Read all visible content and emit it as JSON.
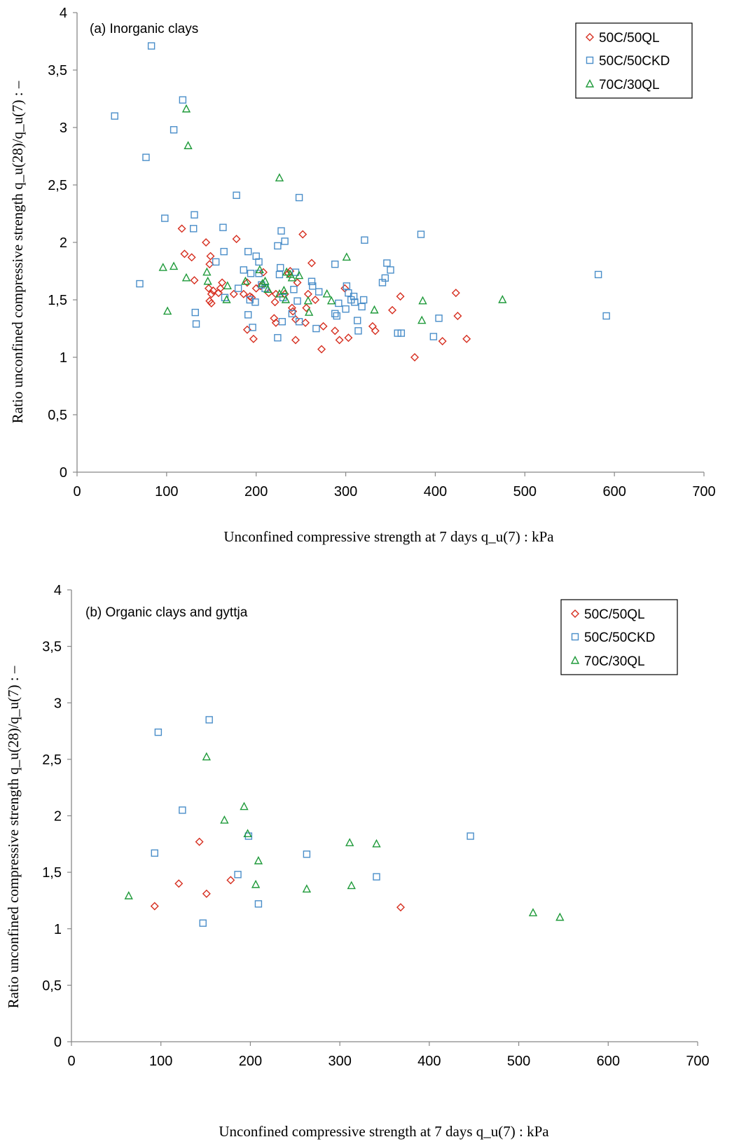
{
  "colors": {
    "50C/50QL": "#d62e1f",
    "50C/50CKD": "#4a8ec9",
    "70C/30QL": "#1f9a3a"
  },
  "markers": {
    "50C/50QL": "diamond",
    "50C/50CKD": "square",
    "70C/30QL": "triangle"
  },
  "chart_data": [
    {
      "type": "scatter",
      "title": "(a) Inorganic clays",
      "xlabel": "Unconfined compressive strength at 7 days q_u(7) : kPa",
      "ylabel": "Ratio unconfined compressive strength q_u(28)/q_u(7) : –",
      "xlim": [
        0,
        700
      ],
      "ylim": [
        0,
        4
      ],
      "xticks": [
        "0",
        "100",
        "200",
        "300",
        "400",
        "500",
        "600",
        "700"
      ],
      "yticks": [
        "0",
        "0,5",
        "1",
        "1,5",
        "2",
        "2,5",
        "3",
        "3,5",
        "4"
      ],
      "grid": false,
      "legend_position": "top-right",
      "series": [
        {
          "name": "50C/50QL",
          "points": [
            [
              117,
              2.12
            ],
            [
              120,
              1.9
            ],
            [
              128,
              1.87
            ],
            [
              131,
              1.67
            ],
            [
              144,
              2.0
            ],
            [
              148,
              1.81
            ],
            [
              149,
              1.88
            ],
            [
              147,
              1.6
            ],
            [
              150,
              1.55
            ],
            [
              152,
              1.58
            ],
            [
              148,
              1.49
            ],
            [
              150,
              1.47
            ],
            [
              158,
              1.56
            ],
            [
              160,
              1.6
            ],
            [
              162,
              1.65
            ],
            [
              175,
              1.55
            ],
            [
              178,
              2.03
            ],
            [
              186,
              1.55
            ],
            [
              190,
              1.65
            ],
            [
              193,
              1.53
            ],
            [
              195,
              1.52
            ],
            [
              190,
              1.24
            ],
            [
              197,
              1.16
            ],
            [
              200,
              1.6
            ],
            [
              205,
              1.62
            ],
            [
              208,
              1.74
            ],
            [
              214,
              1.56
            ],
            [
              222,
              1.55
            ],
            [
              220,
              1.34
            ],
            [
              222,
              1.3
            ],
            [
              221,
              1.48
            ],
            [
              232,
              1.55
            ],
            [
              236,
              1.73
            ],
            [
              238,
              1.75
            ],
            [
              240,
              1.43
            ],
            [
              241,
              1.4
            ],
            [
              244,
              1.33
            ],
            [
              246,
              1.65
            ],
            [
              244,
              1.15
            ],
            [
              252,
              2.07
            ],
            [
              256,
              1.43
            ],
            [
              255,
              1.3
            ],
            [
              258,
              1.55
            ],
            [
              262,
              1.82
            ],
            [
              266,
              1.5
            ],
            [
              273,
              1.07
            ],
            [
              275,
              1.27
            ],
            [
              288,
              1.23
            ],
            [
              293,
              1.15
            ],
            [
              299,
              1.6
            ],
            [
              303,
              1.17
            ],
            [
              330,
              1.27
            ],
            [
              333,
              1.23
            ],
            [
              352,
              1.41
            ],
            [
              361,
              1.53
            ],
            [
              377,
              1.0
            ],
            [
              408,
              1.14
            ],
            [
              423,
              1.56
            ],
            [
              425,
              1.36
            ],
            [
              435,
              1.16
            ]
          ]
        },
        {
          "name": "50C/50CKD",
          "points": [
            [
              42,
              3.1
            ],
            [
              83,
              3.71
            ],
            [
              77,
              2.74
            ],
            [
              118,
              3.24
            ],
            [
              108,
              2.98
            ],
            [
              70,
              1.64
            ],
            [
              98,
              2.21
            ],
            [
              130,
              2.12
            ],
            [
              131,
              2.24
            ],
            [
              132,
              1.39
            ],
            [
              133,
              1.29
            ],
            [
              155,
              1.83
            ],
            [
              163,
              2.13
            ],
            [
              164,
              1.92
            ],
            [
              165,
              1.52
            ],
            [
              178,
              2.41
            ],
            [
              180,
              1.6
            ],
            [
              186,
              1.76
            ],
            [
              191,
              1.92
            ],
            [
              191,
              1.37
            ],
            [
              193,
              1.5
            ],
            [
              196,
              1.26
            ],
            [
              194,
              1.73
            ],
            [
              199,
              1.48
            ],
            [
              200,
              1.88
            ],
            [
              203,
              1.83
            ],
            [
              203,
              1.73
            ],
            [
              206,
              1.63
            ],
            [
              210,
              1.6
            ],
            [
              224,
              1.97
            ],
            [
              224,
              1.17
            ],
            [
              226,
              1.72
            ],
            [
              227,
              1.78
            ],
            [
              228,
              2.1
            ],
            [
              230,
              1.52
            ],
            [
              229,
              1.31
            ],
            [
              232,
              2.01
            ],
            [
              240,
              1.38
            ],
            [
              242,
              1.59
            ],
            [
              244,
              1.74
            ],
            [
              246,
              1.49
            ],
            [
              248,
              2.39
            ],
            [
              248,
              1.31
            ],
            [
              262,
              1.66
            ],
            [
              263,
              1.62
            ],
            [
              267,
              1.25
            ],
            [
              270,
              1.57
            ],
            [
              288,
              1.81
            ],
            [
              288,
              1.38
            ],
            [
              290,
              1.36
            ],
            [
              292,
              1.47
            ],
            [
              300,
              1.42
            ],
            [
              301,
              1.62
            ],
            [
              303,
              1.56
            ],
            [
              306,
              1.5
            ],
            [
              309,
              1.53
            ],
            [
              310,
              1.48
            ],
            [
              313,
              1.32
            ],
            [
              314,
              1.23
            ],
            [
              318,
              1.44
            ],
            [
              320,
              1.5
            ],
            [
              321,
              2.02
            ],
            [
              341,
              1.65
            ],
            [
              344,
              1.69
            ],
            [
              346,
              1.82
            ],
            [
              350,
              1.76
            ],
            [
              358,
              1.21
            ],
            [
              362,
              1.21
            ],
            [
              384,
              2.07
            ],
            [
              398,
              1.18
            ],
            [
              404,
              1.34
            ],
            [
              582,
              1.72
            ],
            [
              591,
              1.36
            ]
          ]
        },
        {
          "name": "70C/30QL",
          "points": [
            [
              96,
              1.78
            ],
            [
              101,
              1.4
            ],
            [
              108,
              1.79
            ],
            [
              122,
              3.16
            ],
            [
              124,
              2.84
            ],
            [
              122,
              1.69
            ],
            [
              145,
              1.74
            ],
            [
              146,
              1.66
            ],
            [
              167,
              1.5
            ],
            [
              168,
              1.62
            ],
            [
              188,
              1.66
            ],
            [
              204,
              1.76
            ],
            [
              207,
              1.64
            ],
            [
              210,
              1.66
            ],
            [
              213,
              1.59
            ],
            [
              226,
              2.56
            ],
            [
              226,
              1.55
            ],
            [
              231,
              1.58
            ],
            [
              233,
              1.5
            ],
            [
              234,
              1.74
            ],
            [
              238,
              1.72
            ],
            [
              240,
              1.69
            ],
            [
              248,
              1.71
            ],
            [
              258,
              1.49
            ],
            [
              259,
              1.39
            ],
            [
              279,
              1.55
            ],
            [
              284,
              1.49
            ],
            [
              301,
              1.87
            ],
            [
              332,
              1.41
            ],
            [
              385,
              1.32
            ],
            [
              386,
              1.49
            ],
            [
              475,
              1.5
            ]
          ]
        }
      ]
    },
    {
      "type": "scatter",
      "title": "(b) Organic clays and gyttja",
      "xlabel": "Unconfined compressive strength at 7 days q_u(7) : kPa",
      "ylabel": "Ratio unconfined compressive strength q_u(28)/q_u(7) : –",
      "xlim": [
        0,
        700
      ],
      "ylim": [
        0,
        4
      ],
      "xticks": [
        "0",
        "100",
        "200",
        "300",
        "400",
        "500",
        "600",
        "700"
      ],
      "yticks": [
        "0",
        "0,5",
        "1",
        "1,5",
        "2",
        "2,5",
        "3",
        "3,5",
        "4"
      ],
      "grid": false,
      "legend_position": "top-right",
      "series": [
        {
          "name": "50C/50QL",
          "points": [
            [
              93,
              1.2
            ],
            [
              120,
              1.4
            ],
            [
              143,
              1.77
            ],
            [
              151,
              1.31
            ],
            [
              178,
              1.43
            ],
            [
              368,
              1.19
            ]
          ]
        },
        {
          "name": "50C/50CKD",
          "points": [
            [
              93,
              1.67
            ],
            [
              97,
              2.74
            ],
            [
              124,
              2.05
            ],
            [
              147,
              1.05
            ],
            [
              154,
              2.85
            ],
            [
              186,
              1.48
            ],
            [
              198,
              1.82
            ],
            [
              209,
              1.22
            ],
            [
              263,
              1.66
            ],
            [
              341,
              1.46
            ],
            [
              446,
              1.82
            ]
          ]
        },
        {
          "name": "70C/30QL",
          "points": [
            [
              64,
              1.29
            ],
            [
              151,
              2.52
            ],
            [
              171,
              1.96
            ],
            [
              193,
              2.08
            ],
            [
              197,
              1.84
            ],
            [
              206,
              1.39
            ],
            [
              209,
              1.6
            ],
            [
              263,
              1.35
            ],
            [
              311,
              1.76
            ],
            [
              313,
              1.38
            ],
            [
              341,
              1.75
            ],
            [
              516,
              1.14
            ],
            [
              546,
              1.1
            ]
          ]
        }
      ]
    }
  ]
}
